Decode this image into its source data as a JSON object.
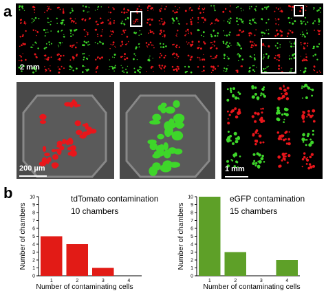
{
  "panel_labels": {
    "a": "a",
    "b": "b"
  },
  "scale_bars": {
    "overview": "2 mm",
    "chamber": "200 µm",
    "grid": "1 mm"
  },
  "colors": {
    "red_channel": "#e8161b",
    "green_channel": "#3ed62a",
    "bar_red": "#e21b16",
    "bar_green": "#5ea028"
  },
  "chart_data": [
    {
      "type": "bar",
      "title": "tdTomato contamination",
      "subtitle": "10 chambers",
      "xlabel": "Number of contaminating cells",
      "ylabel": "Number of chambers",
      "categories": [
        "1",
        "2",
        "3",
        "4"
      ],
      "values": [
        5,
        4,
        1,
        0
      ],
      "ylim": [
        0,
        10
      ],
      "yticks": [
        "0",
        "1",
        "2",
        "3",
        "4",
        "5",
        "6",
        "7",
        "8",
        "9",
        "10"
      ],
      "color": "#e21b16"
    },
    {
      "type": "bar",
      "title": "eGFP contamination",
      "subtitle": "15 chambers",
      "xlabel": "Number of contaminating cells",
      "ylabel": "Number of chambers",
      "categories": [
        "1",
        "2",
        "3",
        "4"
      ],
      "values": [
        10,
        3,
        0,
        2
      ],
      "ylim": [
        0,
        10
      ],
      "yticks": [
        "0",
        "1",
        "2",
        "3",
        "4",
        "5",
        "6",
        "7",
        "8",
        "9",
        "10"
      ],
      "color": "#5ea028"
    }
  ]
}
